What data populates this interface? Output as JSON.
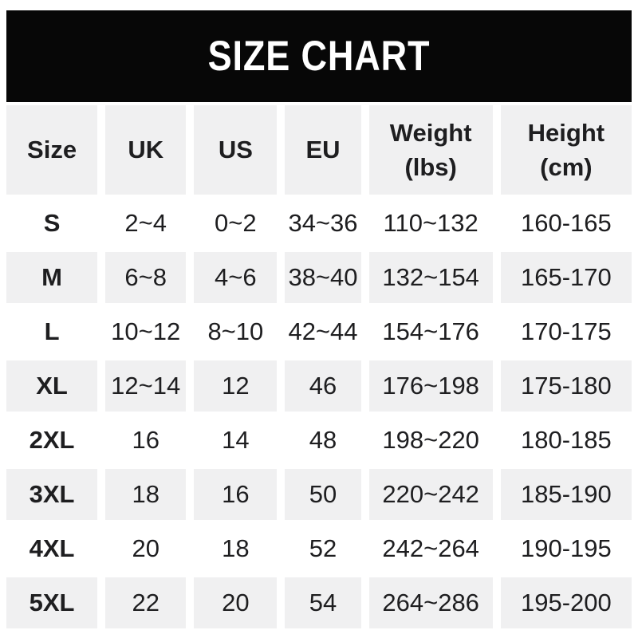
{
  "banner": {
    "title": "SIZE CHART",
    "bg_color": "#070707",
    "text_color": "#ffffff"
  },
  "table": {
    "header": [
      {
        "line1": "Size",
        "line2": ""
      },
      {
        "line1": "UK",
        "line2": ""
      },
      {
        "line1": "US",
        "line2": ""
      },
      {
        "line1": "EU",
        "line2": ""
      },
      {
        "line1": "Weight",
        "line2": "(lbs)"
      },
      {
        "line1": "Height",
        "line2": "(cm)"
      }
    ],
    "stripe_color": "#f0f0f1",
    "text_color": "#1e1e20"
  },
  "chart_data": {
    "type": "table",
    "title": "SIZE CHART",
    "columns": [
      "Size",
      "UK",
      "US",
      "EU",
      "Weight (lbs)",
      "Height (cm)"
    ],
    "rows": [
      [
        "S",
        "2~4",
        "0~2",
        "34~36",
        "110~132",
        "160-165"
      ],
      [
        "M",
        "6~8",
        "4~6",
        "38~40",
        "132~154",
        "165-170"
      ],
      [
        "L",
        "10~12",
        "8~10",
        "42~44",
        "154~176",
        "170-175"
      ],
      [
        "XL",
        "12~14",
        "12",
        "46",
        "176~198",
        "175-180"
      ],
      [
        "2XL",
        "16",
        "14",
        "48",
        "198~220",
        "180-185"
      ],
      [
        "3XL",
        "18",
        "16",
        "50",
        "220~242",
        "185-190"
      ],
      [
        "4XL",
        "20",
        "18",
        "52",
        "242~264",
        "190-195"
      ],
      [
        "5XL",
        "22",
        "20",
        "54",
        "264~286",
        "195-200"
      ]
    ],
    "layout": {
      "header_background": "#f0f0f1",
      "row_striping": "alternating white / #f0f0f1",
      "grid": "white gutters between cells"
    }
  }
}
